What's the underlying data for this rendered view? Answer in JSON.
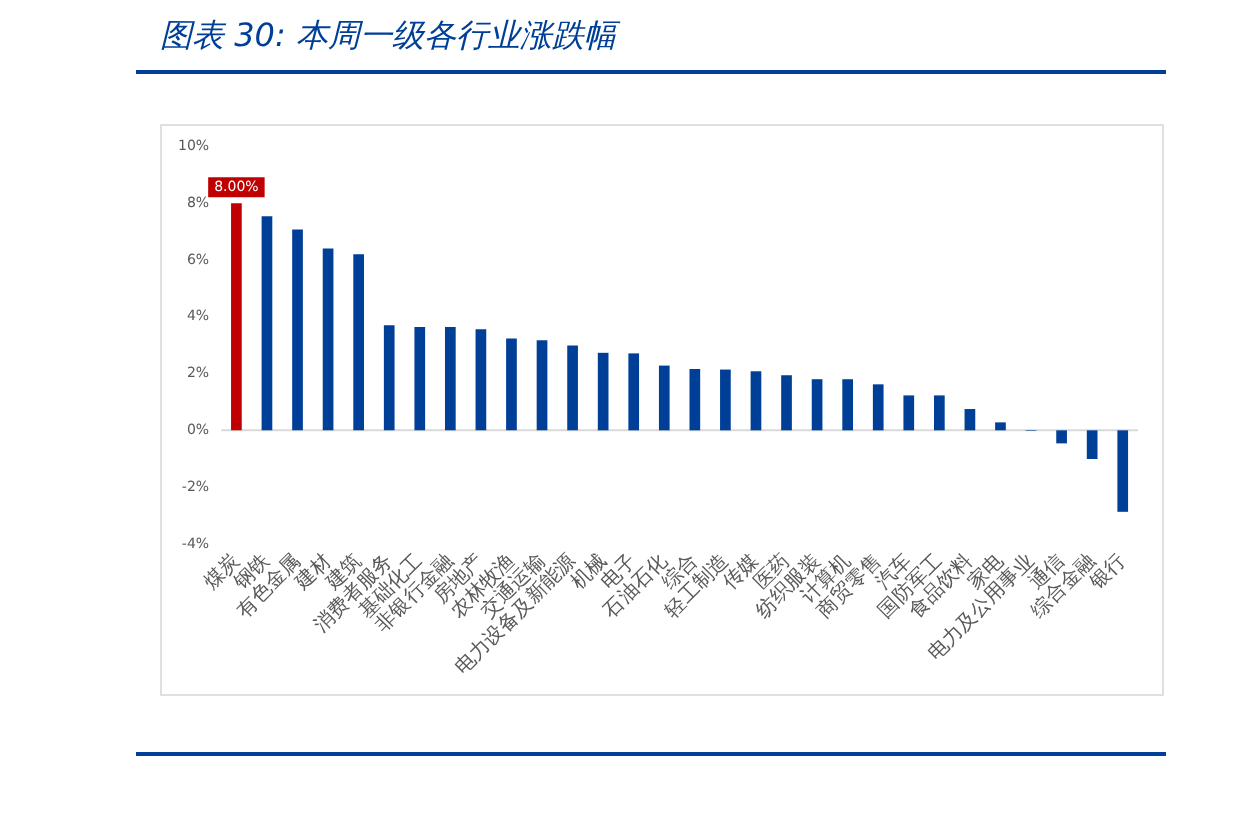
{
  "chart_data": {
    "type": "bar",
    "title": "图表 30:  本周一级各行业涨跌幅",
    "categories": [
      "煤炭",
      "钢铁",
      "有色金属",
      "建材",
      "建筑",
      "消费者服务",
      "基础化工",
      "非银行金融",
      "房地产",
      "农林牧渔",
      "交通运输",
      "电力设备及新能源",
      "机械",
      "电子",
      "石油石化",
      "综合",
      "轻工制造",
      "传媒",
      "医药",
      "纺织服装",
      "计算机",
      "商贸零售",
      "汽车",
      "国防军工",
      "食品饮料",
      "家电",
      "电力及公用事业",
      "通信",
      "综合金融",
      "银行"
    ],
    "values": [
      8.0,
      7.54,
      7.07,
      6.4,
      6.2,
      3.7,
      3.64,
      3.64,
      3.56,
      3.23,
      3.17,
      2.99,
      2.73,
      2.71,
      2.28,
      2.16,
      2.14,
      2.08,
      1.94,
      1.8,
      1.8,
      1.62,
      1.23,
      1.23,
      0.75,
      0.28,
      -0.02,
      -0.46,
      -1.01,
      -2.87
    ],
    "colors": [
      "#c00000",
      "#003f98",
      "#003f98",
      "#003f98",
      "#003f98",
      "#003f98",
      "#003f98",
      "#003f98",
      "#003f98",
      "#003f98",
      "#003f98",
      "#003f98",
      "#003f98",
      "#003f98",
      "#003f98",
      "#003f98",
      "#003f98",
      "#003f98",
      "#003f98",
      "#003f98",
      "#003f98",
      "#003f98",
      "#003f98",
      "#003f98",
      "#003f98",
      "#003f98",
      "#003f98",
      "#003f98",
      "#003f98",
      "#003f98"
    ],
    "value_labels": [
      "8.00%",
      null,
      null,
      null,
      null,
      null,
      null,
      null,
      null,
      null,
      null,
      null,
      null,
      null,
      null,
      null,
      null,
      null,
      null,
      null,
      null,
      null,
      null,
      null,
      null,
      null,
      null,
      null,
      null,
      null
    ],
    "ylim": [
      -4,
      10
    ],
    "yticks": [
      {
        "value": -4,
        "label": "-4%"
      },
      {
        "value": -2,
        "label": "-2%"
      },
      {
        "value": 0,
        "label": "0%"
      },
      {
        "value": 2,
        "label": "2%"
      },
      {
        "value": 4,
        "label": "4%"
      },
      {
        "value": 6,
        "label": "6%"
      },
      {
        "value": 8,
        "label": "8%"
      },
      {
        "value": 10,
        "label": "10%"
      }
    ],
    "ref_lines": [
      {
        "axis": "y",
        "value": 0,
        "color": "#d9d9d9"
      }
    ],
    "grid": false,
    "legend": false
  }
}
